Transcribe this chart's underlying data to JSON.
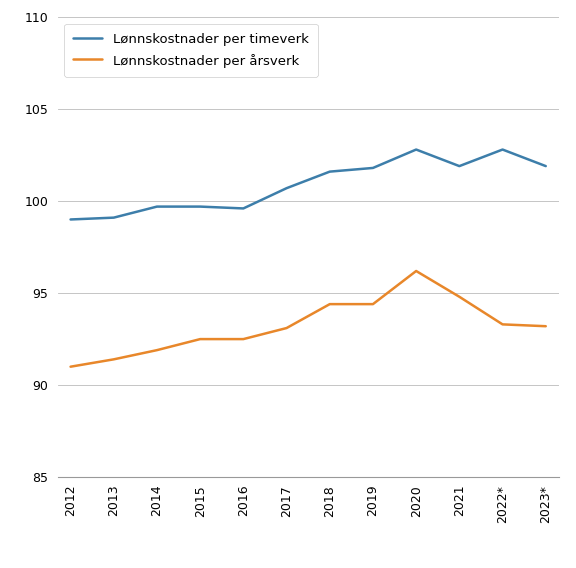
{
  "years": [
    2012,
    2013,
    2014,
    2015,
    2016,
    2017,
    2018,
    2019,
    2020,
    2021,
    2022,
    2023
  ],
  "x_labels": [
    "2012",
    "2013",
    "2014",
    "2015",
    "2016",
    "2017",
    "2018",
    "2019",
    "2020",
    "2021",
    "2022*",
    "2023*"
  ],
  "timeverk": [
    99.0,
    99.1,
    99.7,
    99.7,
    99.6,
    100.7,
    101.6,
    101.8,
    102.8,
    101.9,
    102.8,
    101.9
  ],
  "arsverk": [
    91.0,
    91.4,
    91.9,
    92.5,
    92.5,
    93.1,
    94.4,
    94.4,
    96.2,
    94.8,
    93.3,
    93.2
  ],
  "timeverk_color": "#3d7eaa",
  "arsverk_color": "#e8872a",
  "timeverk_label": "Lønnskostnader per timeverk",
  "arsverk_label": "Lønnskostnader per årsverk",
  "ylim": [
    85,
    110
  ],
  "yticks": [
    85,
    90,
    95,
    100,
    105,
    110
  ],
  "background_color": "#ffffff",
  "line_width": 1.8,
  "grid_color": "#bbbbbb",
  "spine_color": "#999999"
}
